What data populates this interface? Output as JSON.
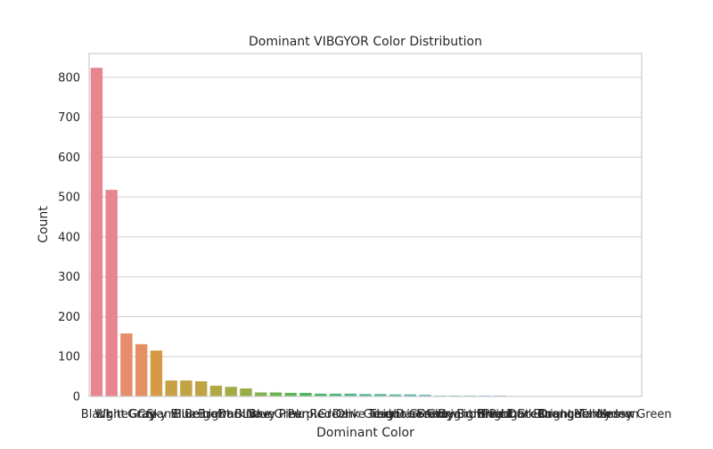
{
  "chart_data": {
    "type": "bar",
    "title": "Dominant VIBGYOR Color Distribution",
    "xlabel": "Dominant Color",
    "ylabel": "Count",
    "ylim": [
      0,
      860
    ],
    "yticks": [
      0,
      100,
      200,
      300,
      400,
      500,
      600,
      700,
      800
    ],
    "grid": true,
    "categories": [
      "Black",
      "White",
      "Light Gray",
      "Gray",
      "Cream",
      "Sky Blue",
      "Blue",
      "Beige",
      "Brown",
      "Light Blue",
      "Dark Blue",
      "Navy",
      "Lime Green",
      "Pink",
      "Purple",
      "Red",
      "Green",
      "Olive",
      "Dark Green",
      "Teal",
      "Turquoise",
      "Light Green",
      "Dark Gray",
      "Yellow",
      "Sandy Brown",
      "Bright Blue",
      "Light Pink",
      "Peach",
      "Bright Green",
      "Light Blue",
      "Dark Orange",
      "Orange",
      "Bright Yellow",
      "Tan",
      "Honeydew",
      "Lemon",
      "Mossy Green"
    ],
    "values": [
      824,
      518,
      158,
      131,
      115,
      40,
      40,
      38,
      27,
      24,
      20,
      10,
      10,
      9,
      9,
      7,
      7,
      7,
      6,
      6,
      5,
      5,
      4,
      2,
      2,
      2,
      2,
      2,
      1,
      1,
      1,
      1,
      1,
      1,
      1,
      1,
      1
    ],
    "colors": [
      "#e8868f",
      "#e8868f",
      "#e68e6b",
      "#e59064",
      "#d69a47",
      "#c7a144",
      "#c3a244",
      "#bea446",
      "#b0a845",
      "#a3ab44",
      "#98ad45",
      "#7fb24b",
      "#6db54f",
      "#5cb653",
      "#4fb55c",
      "#4cb46e",
      "#4cb57c",
      "#4db585",
      "#50b48f",
      "#53b398",
      "#55b29f",
      "#56b1a8",
      "#58b0b0",
      "#5aafb8",
      "#5daec2",
      "#61acce",
      "#6aa8da",
      "#7ba2e4",
      "#919ce8",
      "#a695eb",
      "#bc8de6",
      "#cc85df",
      "#d97cd6",
      "#e277cc",
      "#e77bbd",
      "#e87fae",
      "#e8829f"
    ],
    "axes_face": "#ffffff",
    "grid_color": "#cfcfcf",
    "spine_color": "#cccccc"
  }
}
